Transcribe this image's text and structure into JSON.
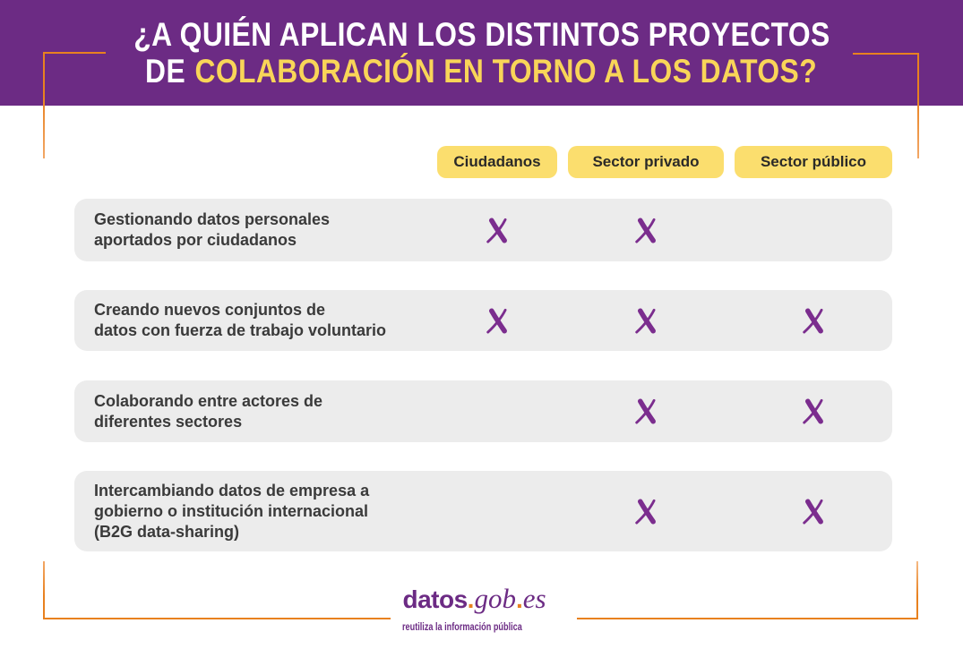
{
  "header": {
    "title_line1": "¿A QUIÉN APLICAN LOS DISTINTOS PROYECTOS",
    "title_line2_prefix": "DE",
    "title_line2_highlight": "COLABORACIÓN EN TORNO A LOS DATOS?"
  },
  "columns": [
    {
      "label": "Ciudadanos"
    },
    {
      "label": "Sector privado"
    },
    {
      "label": "Sector público"
    }
  ],
  "rows": [
    {
      "label_lines": [
        "Gestionando datos personales",
        "aportados por ciudadanos"
      ],
      "marks": [
        true,
        true,
        false
      ]
    },
    {
      "label_lines": [
        "Creando nuevos conjuntos de",
        "datos con fuerza de trabajo voluntario"
      ],
      "marks": [
        true,
        true,
        true
      ]
    },
    {
      "label_lines": [
        "Colaborando entre actores de",
        "diferentes sectores"
      ],
      "marks": [
        false,
        true,
        true
      ]
    },
    {
      "label_lines": [
        "Intercambiando datos de empresa a",
        "gobierno o institución internacional",
        "(B2G data-sharing)"
      ],
      "marks": [
        false,
        true,
        true
      ]
    }
  ],
  "mark_symbol": "X",
  "footer": {
    "logo_datos": "datos",
    "logo_dot1": ".",
    "logo_gob": "gob",
    "logo_dot2": ".",
    "logo_es": "es",
    "tagline": "reutiliza la información pública"
  },
  "colors": {
    "header_purple": "#6C2B84",
    "highlight_yellow": "#F9D558",
    "chip_yellow": "#FBDE6E",
    "row_gray": "#ECECEC",
    "mark_purple": "#7B2D8E",
    "accent_orange": "#E8811F",
    "text_dark": "#3A3A3A"
  },
  "chart_data": {
    "type": "table",
    "title": "¿A quién aplican los distintos proyectos de colaboración en torno a los datos?",
    "columns": [
      "Ciudadanos",
      "Sector privado",
      "Sector público"
    ],
    "rows": [
      {
        "label": "Gestionando datos personales aportados por ciudadanos",
        "Ciudadanos": true,
        "Sector privado": true,
        "Sector público": false
      },
      {
        "label": "Creando nuevos conjuntos de datos con fuerza de trabajo voluntario",
        "Ciudadanos": true,
        "Sector privado": true,
        "Sector público": true
      },
      {
        "label": "Colaborando entre actores de diferentes sectores",
        "Ciudadanos": false,
        "Sector privado": true,
        "Sector público": true
      },
      {
        "label": "Intercambiando datos de empresa a gobierno o institución internacional (B2G data-sharing)",
        "Ciudadanos": false,
        "Sector privado": true,
        "Sector público": true
      }
    ],
    "legend_position": "none",
    "grid": false,
    "source": "datos.gob.es"
  }
}
